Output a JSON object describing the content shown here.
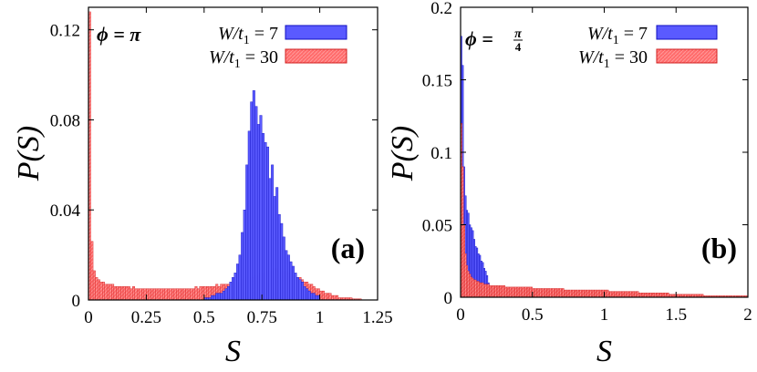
{
  "chart_data": [
    {
      "type": "bar",
      "panel_label": "(a)",
      "phi_label": "ϕ = π",
      "xlabel": "S",
      "ylabel": "P(S)",
      "xlim": [
        0,
        1.25
      ],
      "ylim": [
        0,
        0.13
      ],
      "xticks": [
        "0",
        "0.25",
        "0.5",
        "0.75",
        "1",
        "1.25"
      ],
      "yticks": [
        "0",
        "0.04",
        "0.08",
        "0.12"
      ],
      "bin_width": 0.01,
      "legend_position": "top-right",
      "series": [
        {
          "name": "W/t1 = 7",
          "label_main": "W/t",
          "label_sub": "1",
          "label_tail": " = 7",
          "color": "#5a5aff",
          "edge": "#1010c0",
          "x_start": 0.5,
          "values": [
            0.001,
            0.001,
            0.001,
            0.002,
            0.002,
            0.003,
            0.003,
            0.003,
            0.004,
            0.005,
            0.006,
            0.008,
            0.01,
            0.012,
            0.016,
            0.02,
            0.03,
            0.04,
            0.06,
            0.075,
            0.088,
            0.093,
            0.086,
            0.078,
            0.082,
            0.074,
            0.07,
            0.068,
            0.054,
            0.06,
            0.046,
            0.05,
            0.038,
            0.034,
            0.028,
            0.022,
            0.02,
            0.017,
            0.015,
            0.012,
            0.01,
            0.009,
            0.008,
            0.006,
            0.005,
            0.004,
            0.003,
            0.003,
            0.002,
            0.002
          ]
        },
        {
          "name": "W/t1 = 30",
          "label_main": "W/t",
          "label_sub": "1",
          "label_tail": " = 30",
          "color": "#ff6b6b",
          "edge": "#d02020",
          "x_start": 0.0,
          "values": [
            0.128,
            0.026,
            0.013,
            0.01,
            0.009,
            0.008,
            0.008,
            0.007,
            0.007,
            0.007,
            0.007,
            0.006,
            0.006,
            0.006,
            0.006,
            0.006,
            0.006,
            0.006,
            0.005,
            0.006,
            0.005,
            0.005,
            0.005,
            0.005,
            0.005,
            0.005,
            0.005,
            0.005,
            0.005,
            0.005,
            0.005,
            0.005,
            0.005,
            0.005,
            0.005,
            0.005,
            0.005,
            0.005,
            0.005,
            0.005,
            0.005,
            0.005,
            0.005,
            0.005,
            0.005,
            0.005,
            0.006,
            0.005,
            0.006,
            0.006,
            0.006,
            0.006,
            0.006,
            0.006,
            0.006,
            0.007,
            0.006,
            0.007,
            0.007,
            0.007,
            0.007,
            0.007,
            0.008,
            0.008,
            0.008,
            0.008,
            0.009,
            0.009,
            0.009,
            0.009,
            0.01,
            0.01,
            0.011,
            0.011,
            0.012,
            0.012,
            0.012,
            0.013,
            0.013,
            0.013,
            0.014,
            0.014,
            0.014,
            0.013,
            0.013,
            0.013,
            0.012,
            0.012,
            0.011,
            0.011,
            0.01,
            0.01,
            0.009,
            0.008,
            0.008,
            0.007,
            0.007,
            0.006,
            0.005,
            0.005,
            0.004,
            0.004,
            0.003,
            0.003,
            0.003,
            0.002,
            0.002,
            0.002,
            0.001,
            0.001,
            0.001,
            0.001,
            0.001,
            0.001,
            0.0005,
            0.0005,
            0.0005,
            0.0005
          ]
        }
      ]
    },
    {
      "type": "bar",
      "panel_label": "(b)",
      "phi_label": "ϕ = ",
      "phi_num": "π",
      "phi_den": "4",
      "xlabel": "S",
      "ylabel": "P(S)",
      "xlim": [
        0,
        2
      ],
      "ylim": [
        0,
        0.2
      ],
      "xticks": [
        "0",
        "0.5",
        "1",
        "1.5",
        "2"
      ],
      "yticks": [
        "0",
        "0.05",
        "0.1",
        "0.15",
        "0.2"
      ],
      "bin_width": 0.01,
      "legend_position": "top-right",
      "series": [
        {
          "name": "W/t1 = 7",
          "label_main": "W/t",
          "label_sub": "1",
          "label_tail": " = 7",
          "color": "#5a5aff",
          "edge": "#1010c0",
          "x_start": 0.0,
          "values": [
            0.18,
            0.16,
            0.09,
            0.07,
            0.06,
            0.058,
            0.05,
            0.048,
            0.046,
            0.04,
            0.035,
            0.034,
            0.03,
            0.029,
            0.025,
            0.024,
            0.02,
            0.018,
            0.015,
            0.01,
            0.007,
            0.005,
            0.003,
            0.002,
            0.001
          ]
        },
        {
          "name": "W/t1 = 30",
          "label_main": "W/t",
          "label_sub": "1",
          "label_tail": " = 30",
          "color": "#ff6b6b",
          "edge": "#d02020",
          "x_start": 0.0,
          "values": [
            0.12,
            0.09,
            0.05,
            0.03,
            0.022,
            0.018,
            0.016,
            0.014,
            0.013,
            0.012,
            0.012,
            0.011,
            0.011,
            0.01,
            0.01,
            0.01,
            0.009,
            0.009,
            0.009,
            0.009,
            0.008,
            0.008,
            0.008,
            0.008,
            0.008,
            0.008,
            0.008,
            0.008,
            0.008,
            0.008,
            0.008,
            0.007,
            0.007,
            0.007,
            0.007,
            0.007,
            0.007,
            0.007,
            0.007,
            0.007,
            0.007,
            0.007,
            0.007,
            0.007,
            0.007,
            0.007,
            0.007,
            0.007,
            0.007,
            0.007,
            0.006,
            0.006,
            0.006,
            0.006,
            0.006,
            0.006,
            0.006,
            0.006,
            0.006,
            0.006,
            0.006,
            0.006,
            0.006,
            0.006,
            0.006,
            0.006,
            0.006,
            0.006,
            0.006,
            0.006,
            0.006,
            0.006,
            0.005,
            0.005,
            0.005,
            0.005,
            0.005,
            0.005,
            0.005,
            0.005,
            0.005,
            0.005,
            0.005,
            0.005,
            0.005,
            0.005,
            0.005,
            0.005,
            0.005,
            0.005,
            0.005,
            0.005,
            0.005,
            0.005,
            0.005,
            0.005,
            0.005,
            0.005,
            0.005,
            0.005,
            0.005,
            0.005,
            0.005,
            0.004,
            0.004,
            0.004,
            0.004,
            0.004,
            0.004,
            0.004,
            0.004,
            0.004,
            0.004,
            0.004,
            0.004,
            0.004,
            0.004,
            0.004,
            0.004,
            0.004,
            0.004,
            0.004,
            0.004,
            0.004,
            0.003,
            0.003,
            0.003,
            0.003,
            0.003,
            0.003,
            0.003,
            0.003,
            0.003,
            0.003,
            0.003,
            0.003,
            0.003,
            0.003,
            0.003,
            0.003,
            0.003,
            0.003,
            0.003,
            0.003,
            0.003,
            0.002,
            0.002,
            0.002,
            0.002,
            0.002,
            0.002,
            0.002,
            0.002,
            0.002,
            0.002,
            0.002,
            0.002,
            0.002,
            0.002,
            0.002,
            0.002,
            0.002,
            0.002,
            0.002,
            0.002,
            0.002,
            0.002,
            0.002,
            0.002,
            0.001,
            0.001,
            0.001,
            0.001,
            0.001,
            0.001,
            0.001,
            0.001,
            0.001,
            0.001,
            0.001,
            0.001,
            0.001,
            0.001,
            0.001,
            0.001,
            0.001,
            0.001,
            0.001,
            0.001,
            0.001,
            0.001,
            0.001,
            0.001,
            0.001,
            0.001,
            0.001,
            0.001,
            0.001,
            0.001,
            0.001
          ]
        }
      ]
    }
  ]
}
